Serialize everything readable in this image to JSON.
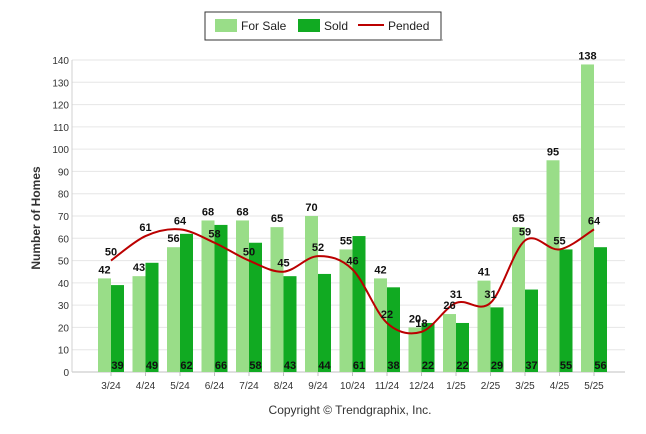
{
  "chart_data": {
    "type": "bar",
    "title": "",
    "xlabel": "",
    "ylabel": "Number of Homes",
    "ylim": [
      0,
      140
    ],
    "yticks": [
      0,
      10,
      20,
      30,
      40,
      50,
      60,
      70,
      80,
      90,
      100,
      110,
      120,
      130,
      140
    ],
    "grid": true,
    "legend_position": "top-center",
    "categories": [
      "3/24",
      "4/24",
      "5/24",
      "6/24",
      "7/24",
      "8/24",
      "9/24",
      "10/24",
      "11/24",
      "12/24",
      "1/25",
      "2/25",
      "3/25",
      "4/25",
      "5/25"
    ],
    "series": [
      {
        "name": "For Sale",
        "kind": "bar",
        "color": "#99dd88",
        "values": [
          42,
          43,
          56,
          68,
          68,
          65,
          70,
          55,
          42,
          20,
          26,
          41,
          65,
          95,
          138
        ]
      },
      {
        "name": "Sold",
        "kind": "bar",
        "color": "#11aa22",
        "values": [
          39,
          49,
          62,
          66,
          58,
          43,
          44,
          61,
          38,
          22,
          22,
          29,
          37,
          55,
          56
        ]
      },
      {
        "name": "Pended",
        "kind": "line",
        "color": "#bb0000",
        "values": [
          50,
          61,
          64,
          58,
          50,
          45,
          52,
          46,
          22,
          18,
          31,
          31,
          59,
          55,
          64
        ]
      }
    ],
    "copyright": "Copyright © Trendgraphix, Inc."
  }
}
